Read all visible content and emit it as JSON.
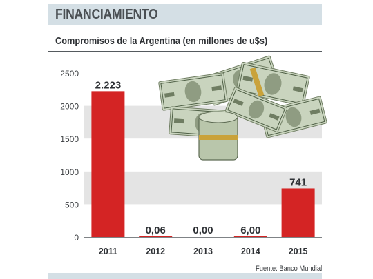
{
  "header": {
    "title": "FINANCIAMIENTO"
  },
  "chart_data": {
    "type": "bar",
    "title": "Compromisos de la Argentina (en millones de u$s)",
    "categories": [
      "2011",
      "2012",
      "2013",
      "2014",
      "2015"
    ],
    "values": [
      2223,
      0.06,
      0.0,
      6.0,
      741
    ],
    "value_labels": [
      "2.223",
      "0,06",
      "0,00",
      "6,00",
      "741"
    ],
    "yticks": [
      "0",
      "500",
      "1000",
      "1500",
      "2000",
      "2500"
    ],
    "ylim": [
      0,
      2500
    ],
    "grid": "alternating horizontal bands",
    "bar_color": "#d42424",
    "band_color": "#e4e4e4",
    "source": "Fuente: Banco Mundial"
  }
}
